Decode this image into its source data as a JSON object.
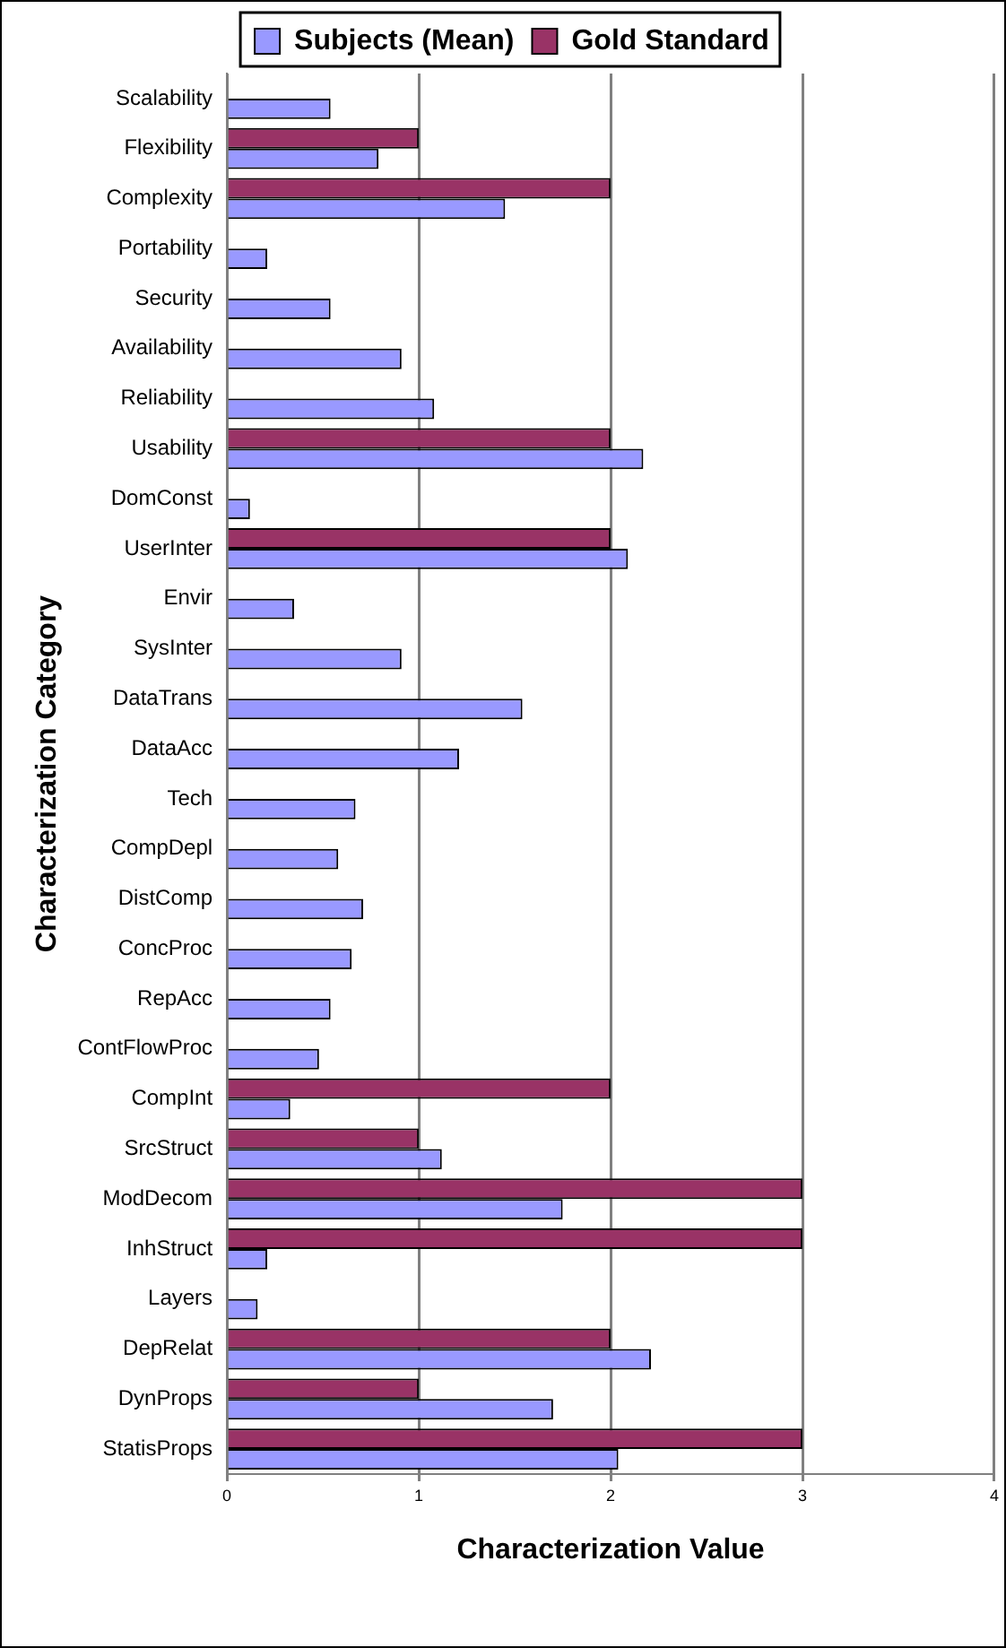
{
  "chart_data": {
    "type": "bar",
    "orientation": "horizontal",
    "xlabel": "Characterization Value",
    "ylabel": "Characterization Category",
    "categories": [
      "Scalability",
      "Flexibility",
      "Complexity",
      "Portability",
      "Security",
      "Availability",
      "Reliability",
      "Usability",
      "DomConst",
      "UserInter",
      "Envir",
      "SysInter",
      "DataTrans",
      "DataAcc",
      "Tech",
      "CompDepl",
      "DistComp",
      "ConcProc",
      "RepAcc",
      "ContFlowProc",
      "CompInt",
      "SrcStruct",
      "ModDecom",
      "InhStruct",
      "Layers",
      "DepRelat",
      "DynProps",
      "StatisProps"
    ],
    "series": [
      {
        "name": "Subjects (Mean)",
        "color": "#9999ff",
        "values": [
          0.54,
          0.79,
          1.45,
          0.21,
          0.54,
          0.91,
          1.08,
          2.17,
          0.12,
          2.09,
          0.35,
          0.91,
          1.54,
          1.21,
          0.67,
          0.58,
          0.71,
          0.65,
          0.54,
          0.48,
          0.33,
          1.12,
          1.75,
          0.21,
          0.16,
          2.21,
          1.7,
          2.04
        ]
      },
      {
        "name": "Gold Standard",
        "color": "#993366",
        "values": [
          null,
          1,
          2,
          null,
          null,
          null,
          null,
          2,
          null,
          2,
          null,
          null,
          null,
          null,
          null,
          null,
          null,
          null,
          null,
          null,
          2,
          1,
          3,
          3,
          null,
          2,
          1,
          3
        ]
      }
    ],
    "xlim": [
      0,
      4
    ],
    "xticks": [
      0,
      1,
      2,
      3,
      4
    ],
    "grid": "x",
    "legend": "top"
  }
}
